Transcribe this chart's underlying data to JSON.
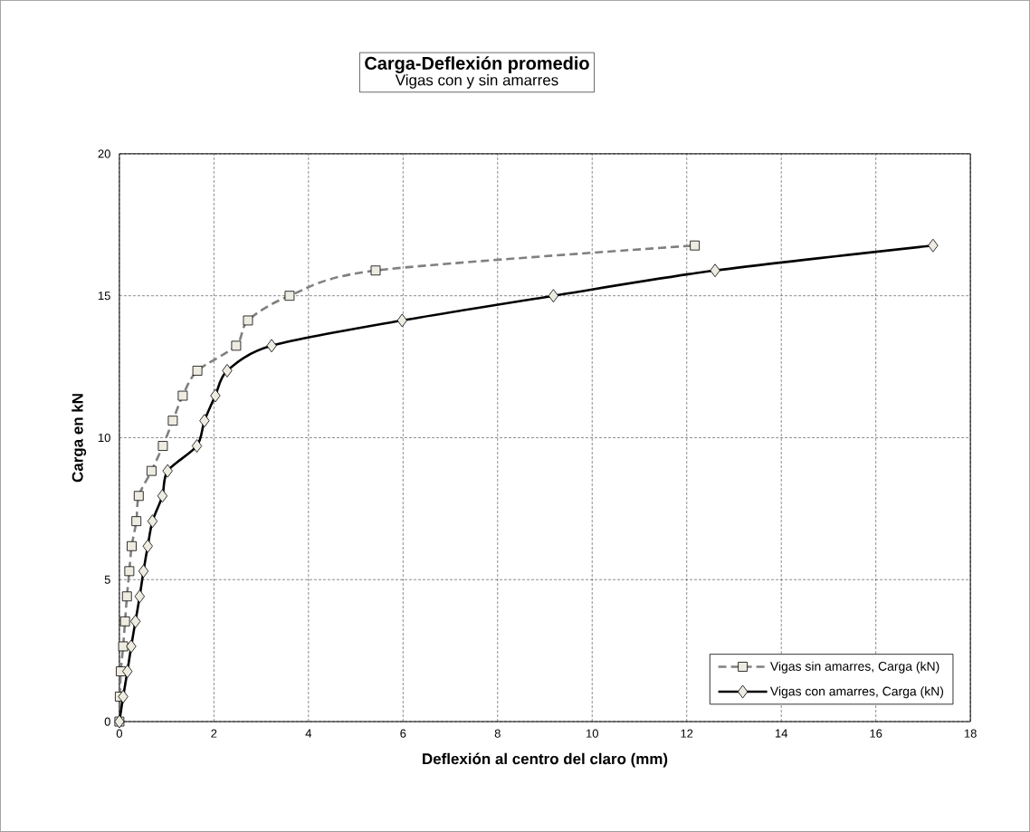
{
  "chart_data": {
    "type": "line",
    "title": "Carga-Deflexión promedio",
    "subtitle": "Vigas con y sin amarres",
    "xlabel": "Deflexión al centro del claro (mm)",
    "ylabel": "Carga en kN",
    "xlim": [
      0,
      18
    ],
    "ylim": [
      0,
      20
    ],
    "xticks": [
      0,
      2,
      4,
      6,
      8,
      10,
      12,
      14,
      16,
      18
    ],
    "yticks": [
      0,
      5,
      10,
      15,
      20
    ],
    "grid": true,
    "legend": "bottom right",
    "series": [
      {
        "name": "Vigas sin amarres, Carga (kN)",
        "color": "#808080",
        "marker": "square",
        "line_style": "dashed",
        "x": [
          0,
          0.01,
          0.03,
          0.08,
          0.12,
          0.16,
          0.21,
          0.26,
          0.36,
          0.41,
          0.68,
          0.92,
          1.13,
          1.34,
          1.65,
          2.47,
          2.72,
          3.6,
          5.42,
          12.17
        ],
        "values": [
          0,
          0.88,
          1.77,
          2.65,
          3.53,
          4.41,
          5.3,
          6.18,
          7.06,
          7.95,
          8.83,
          9.71,
          10.6,
          11.48,
          12.36,
          13.24,
          14.13,
          15.0,
          15.89,
          16.77
        ]
      },
      {
        "name": "Vigas con amarres, Carga (kN)",
        "color": "#000000",
        "marker": "diamond",
        "line_style": "solid",
        "x": [
          0,
          0.08,
          0.17,
          0.25,
          0.34,
          0.43,
          0.51,
          0.6,
          0.7,
          0.91,
          1.02,
          1.64,
          1.8,
          2.03,
          2.28,
          3.22,
          5.98,
          9.18,
          12.6,
          17.21
        ],
        "values": [
          0,
          0.88,
          1.77,
          2.65,
          3.53,
          4.41,
          5.3,
          6.18,
          7.06,
          7.95,
          8.83,
          9.71,
          10.6,
          11.48,
          12.36,
          13.24,
          14.13,
          15.0,
          15.89,
          16.77
        ]
      }
    ]
  }
}
